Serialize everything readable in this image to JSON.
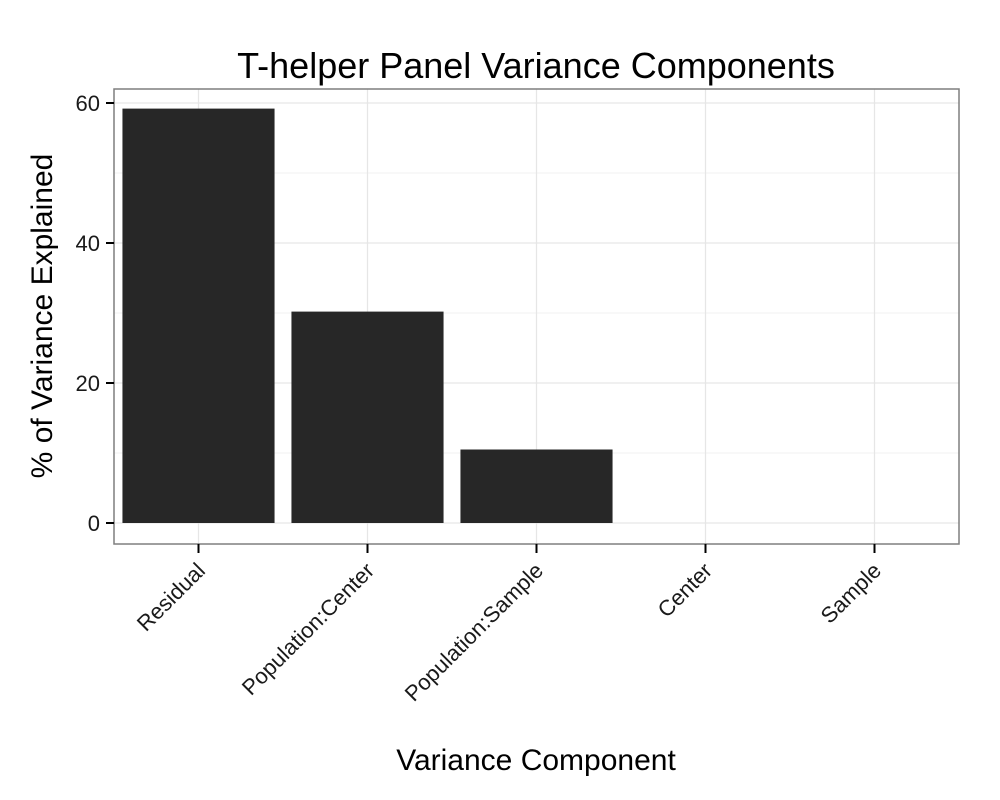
{
  "chart_data": {
    "type": "bar",
    "title": "T-helper Panel Variance Components",
    "xlabel": "Variance Component",
    "ylabel": "% of Variance Explained",
    "categories": [
      "Residual",
      "Population:Center",
      "Population:Sample",
      "Center",
      "Sample"
    ],
    "values": [
      59.2,
      30.2,
      10.5,
      0,
      0
    ],
    "ylim": [
      -3,
      62
    ],
    "yticks": [
      0,
      20,
      40,
      60
    ],
    "grid": true,
    "legend": "none",
    "colors": {
      "bar": "#272727",
      "grid_major": "#e6e6e6",
      "grid_minor": "#f2f2f2",
      "panel_border": "#7f7f7f",
      "tick": "#000000"
    }
  }
}
